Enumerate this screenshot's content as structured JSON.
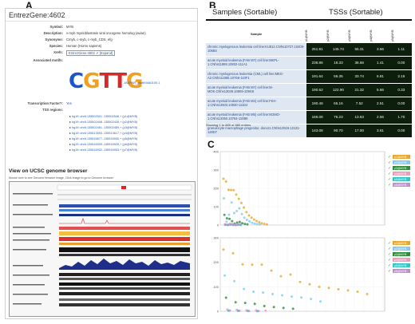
{
  "panels": {
    "a": "A",
    "b": "B",
    "c": "C"
  },
  "entrez": {
    "title": "EntrezGene:4602",
    "fields": [
      {
        "k": "Symbol:",
        "v": "MYB"
      },
      {
        "k": "Description:",
        "v": "v-myb myeloblastosis viral oncogene homolog (avian)"
      },
      {
        "k": "Synonyms:",
        "v": "Cmyb, c-myb, c-myb_CDS, efg"
      },
      {
        "k": "Species:",
        "v": "Human (Homo sapiens)"
      },
      {
        "k": "Xrefs:",
        "v": "EntrezGene:4602 ⇗ [Expand]"
      },
      {
        "k": "Associated motifs:",
        "v": ""
      }
    ],
    "motif_logo": "CGTTG",
    "motif_id": "JASPAR_motif:MA0100.1",
    "tf_label": "Transcription Factor?:",
    "tf_value": "Yes",
    "tss_label": "TSS regions:",
    "tss": [
      "hg19::chr6:135502501..135502546,+ (p1@MYB)",
      "hg19::chr6:135502408..135502426,+ (p2@MYB)",
      "hg19::chr6:135502461..135502489,+ (p3@MYB)",
      "hg19::chr6:135513593..135513617,+ (p4@MYB)",
      "hg19::chr6:135516877..135516900,+ (p5@MYB)",
      "hg19::chr6:135516909..135516925,+ (p6@MYB)",
      "hg19::chr6:135516932..135516953,+ (p7@MYB)"
    ],
    "ucsc_title": "View on UCSC genome browser",
    "ucsc_hint": "Mouse over to see Genome browser image, Click image to go to Genome browser"
  },
  "samples": {
    "header_samples": "Samples (Sortable)",
    "header_tss": "TSSs (Sortable)",
    "column_sample": "Sample",
    "columns": [
      "p1@MYB",
      "p2@MYB",
      "p3@MYB",
      "p4@MYB",
      "p5@MYB"
    ],
    "rows": [
      {
        "sample": "chronic myelogenous leukemia cell line:KU812.CNhs10727.10409-106B4",
        "values": [
          "251.91",
          "145.74",
          "55.31",
          "3.66",
          "1.11"
        ]
      },
      {
        "sample": "acute myeloid leukemia (FAB M7) cell line:MKPL-1.CNhs11888.10802-111A1",
        "values": [
          "236.86",
          "18.33",
          "36.66",
          "1.41",
          "0.00"
        ]
      },
      {
        "sample": "chronic myelogenous leukemia (CML) cell line:MEG-A2.CNhs11865.10766-110F1",
        "values": [
          "191.64",
          "56.35",
          "33.74",
          "6.81",
          "2.16"
        ]
      },
      {
        "sample": "acute myeloid leukemia (FAB M7) cell line:M-MOK.CNhs13049.10809-109G6",
        "values": [
          "190.52",
          "122.90",
          "21.32",
          "5.66",
          "0.33"
        ]
      },
      {
        "sample": "acute myeloid leukemia (FAB M4) cell line:FKH-1.CNhs13503.10830-111D2",
        "values": [
          "190.48",
          "65.16",
          "7.52",
          "2.51",
          "0.00"
        ]
      },
      {
        "sample": "acute myeloid leukemia (FAB M5) cell line:NOMO-1.CNhs13050.10764-110B9",
        "values": [
          "166.08",
          "76.23",
          "13.63",
          "2.56",
          "1.70"
        ]
      },
      {
        "sample": "granulocyte macrophage progenitor, donor1.CNhs12519.12131-128D7",
        "values": [
          "143.08",
          "90.70",
          "17.00",
          "3.61",
          "0.00"
        ]
      }
    ],
    "showing": "Showing 1 to 889 of 889 entries"
  },
  "colors": {
    "series": [
      "#e6a82e",
      "#7fcdee",
      "#2e8c3a",
      "#ee9ab8",
      "#33c6c6",
      "#c08fd0"
    ]
  },
  "chart_data": [
    {
      "type": "scatter",
      "title": "",
      "ylim": [
        0,
        400
      ],
      "yticks": [
        "400",
        "300",
        "200",
        "100",
        "0"
      ],
      "legend_position": "right",
      "series": [
        {
          "name": "p1@MYB",
          "values": [
            251.91,
            236.86,
            191.64,
            190.52,
            190.48,
            166.08,
            143.08,
            120,
            95,
            70,
            52,
            40,
            30,
            22,
            15,
            10,
            6,
            3
          ]
        },
        {
          "name": "p2@MYB",
          "values": [
            145.74,
            18.33,
            56.35,
            122.9,
            65.16,
            76.23,
            90.7,
            60,
            40,
            28,
            20,
            12,
            8,
            5,
            3
          ]
        },
        {
          "name": "p3@MYB",
          "values": [
            55.31,
            36.66,
            33.74,
            21.32,
            7.52,
            13.63,
            17,
            10,
            6,
            4
          ]
        },
        {
          "name": "p4@MYB",
          "values": [
            3.66,
            1.41,
            6.81,
            5.66,
            2.51,
            2.56,
            3.61
          ]
        },
        {
          "name": "p5@MYB",
          "values": [
            1.11,
            0,
            2.16,
            0.33,
            0,
            1.7,
            0
          ]
        },
        {
          "name": "p6@MYB",
          "values": [
            2,
            1,
            3,
            1,
            0,
            1
          ]
        }
      ]
    },
    {
      "type": "scatter",
      "title": "",
      "ylim": [
        0,
        300
      ],
      "yticks": [
        "300",
        "200",
        "100",
        "0"
      ],
      "legend_position": "right",
      "series": [
        {
          "name": "p1@MYB",
          "values": [
            251.91,
            236.86,
            191.64,
            190.52,
            190.48,
            166.08,
            143.08,
            150,
            120,
            110,
            100,
            95,
            90,
            85,
            80,
            70
          ]
        },
        {
          "name": "p2@MYB",
          "values": [
            145.74,
            122.9,
            90.7,
            80,
            76.23,
            70,
            65.16,
            60,
            56.35,
            50,
            40
          ]
        },
        {
          "name": "p3@MYB",
          "values": [
            55.31,
            36.66,
            33.74,
            30,
            21.32,
            17,
            13.63,
            10
          ]
        },
        {
          "name": "p4@MYB",
          "values": [
            6.81,
            5.66,
            3.66,
            3.61,
            2.56
          ]
        },
        {
          "name": "p5@MYB",
          "values": [
            2.16,
            1.7,
            1.11,
            0.33
          ]
        },
        {
          "name": "p6@MYB",
          "values": [
            3,
            2,
            1,
            1
          ]
        }
      ]
    }
  ]
}
